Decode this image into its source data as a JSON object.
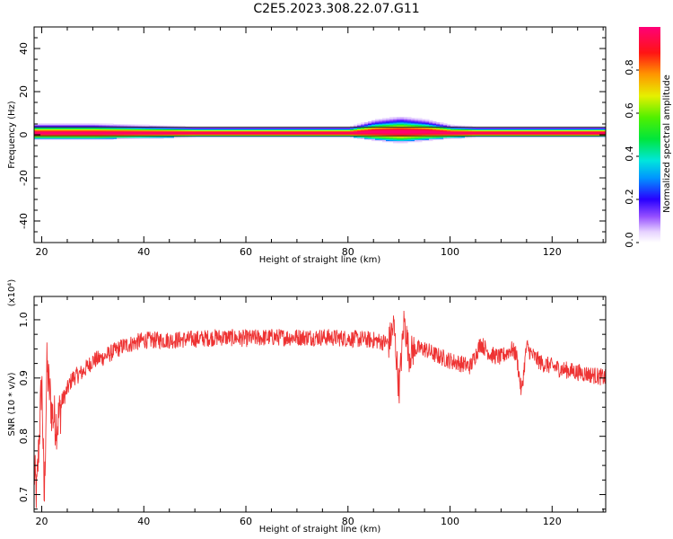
{
  "title": "C2E5.2023.308.22.07.G11",
  "colors": {
    "axis": "#000000",
    "snr_line": "#ee3333",
    "spectrum_core": "#ff1a55",
    "spectrum_band": "#22dd77"
  },
  "chart_data": [
    {
      "id": "spectrogram",
      "type": "heatmap",
      "xlabel": "Height of straight line (km)",
      "ylabel": "Frequency (Hz)",
      "xlim": [
        18.5,
        130.5
      ],
      "ylim": [
        -50,
        50
      ],
      "xticks": [
        20,
        40,
        60,
        80,
        100,
        120
      ],
      "xticklabels": [
        "20",
        "40",
        "60",
        "80",
        "100",
        "120"
      ],
      "yticks": [
        -40,
        -20,
        0,
        20,
        40
      ],
      "yticklabels": [
        "-40",
        "-20",
        "0",
        "20",
        "40"
      ],
      "grid": false,
      "colorbar": {
        "label": "Normalized spectral amplitude",
        "range": [
          0,
          1
        ],
        "ticks": [
          0.0,
          0.2,
          0.4,
          0.6,
          0.8
        ],
        "ticklabels": [
          "0.0",
          "0.2",
          "0.4",
          "0.6",
          "0.8"
        ],
        "colormap": "rainbow (white-violet-blue-cyan-green-yellow-orange-red-magenta)"
      },
      "description_points": {
        "x": [
          20,
          30,
          40,
          50,
          60,
          70,
          80,
          85,
          90,
          95,
          100,
          105,
          110,
          115,
          120,
          130
        ],
        "peak_frequency_hz": [
          1,
          1,
          1,
          1,
          1,
          1,
          1,
          1.5,
          1.5,
          1.5,
          1,
          1,
          1,
          1,
          1,
          1
        ],
        "halfwidth_hz": [
          3,
          3,
          2.5,
          2,
          2,
          2,
          2,
          4,
          5,
          4,
          2.5,
          2,
          2,
          2,
          2,
          2
        ]
      }
    },
    {
      "id": "snr",
      "type": "line",
      "xlabel": "Height of straight line (km)",
      "ylabel": "SNR (10 * v/v)",
      "yscale_label": "(x10⁴)",
      "xlim": [
        18.5,
        130.5
      ],
      "ylim": [
        0.67,
        1.04
      ],
      "xticks": [
        20,
        40,
        60,
        80,
        100,
        120
      ],
      "xticklabels": [
        "20",
        "40",
        "60",
        "80",
        "100",
        "120"
      ],
      "yticks": [
        0.7,
        0.8,
        0.9,
        1.0
      ],
      "yticklabels": [
        "0.7",
        "0.8",
        "0.9",
        "1.0"
      ],
      "grid": false,
      "series": [
        {
          "x": [
            18.5,
            19,
            20,
            20.5,
            21,
            22,
            23,
            24,
            25,
            26,
            28,
            30,
            32,
            34,
            36,
            40,
            45,
            50,
            55,
            60,
            65,
            70,
            75,
            80,
            85,
            88,
            89,
            90,
            91,
            92,
            93,
            95,
            97,
            100,
            102,
            104,
            106,
            108,
            110,
            112,
            113,
            114,
            115,
            116,
            118,
            120,
            122,
            125,
            128,
            130.5
          ],
          "values": [
            0.74,
            0.7,
            0.9,
            0.68,
            0.92,
            0.84,
            0.82,
            0.86,
            0.88,
            0.9,
            0.91,
            0.93,
            0.935,
            0.945,
            0.955,
            0.965,
            0.965,
            0.967,
            0.97,
            0.968,
            0.97,
            0.97,
            0.97,
            0.968,
            0.965,
            0.96,
            0.99,
            0.88,
            1.0,
            0.94,
            0.95,
            0.95,
            0.94,
            0.93,
            0.925,
            0.92,
            0.96,
            0.94,
            0.935,
            0.95,
            0.94,
            0.875,
            0.955,
            0.94,
            0.925,
            0.92,
            0.915,
            0.91,
            0.905,
            0.9
          ],
          "noise_amplitude": 0.03
        }
      ]
    }
  ]
}
